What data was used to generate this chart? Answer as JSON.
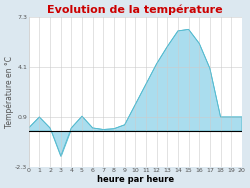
{
  "title": "Evolution de la température",
  "xlabel": "heure par heure",
  "ylabel": "Température en °C",
  "background_color": "#dce8f0",
  "plot_bg_color": "#ffffff",
  "line_color": "#55bbd0",
  "fill_color": "#aaddee",
  "title_color": "#cc0000",
  "label_color": "#000000",
  "axis_label_color": "#555555",
  "grid_color": "#cccccc",
  "ylim": [
    -2.3,
    7.3
  ],
  "yticks": [
    -2.3,
    0.9,
    4.1,
    7.3
  ],
  "xlim": [
    0,
    20
  ],
  "hours": [
    0,
    1,
    2,
    3,
    4,
    5,
    6,
    7,
    8,
    9,
    10,
    11,
    12,
    13,
    14,
    15,
    16,
    17,
    18,
    19,
    20
  ],
  "temps": [
    0.2,
    0.9,
    0.2,
    -1.6,
    0.2,
    0.95,
    0.2,
    0.1,
    0.15,
    0.4,
    1.7,
    3.0,
    4.3,
    5.4,
    6.4,
    6.5,
    5.6,
    4.0,
    0.9,
    0.9,
    0.9
  ],
  "title_fontsize": 8,
  "xlabel_fontsize": 6,
  "ylabel_fontsize": 5.5,
  "tick_fontsize": 4.5
}
